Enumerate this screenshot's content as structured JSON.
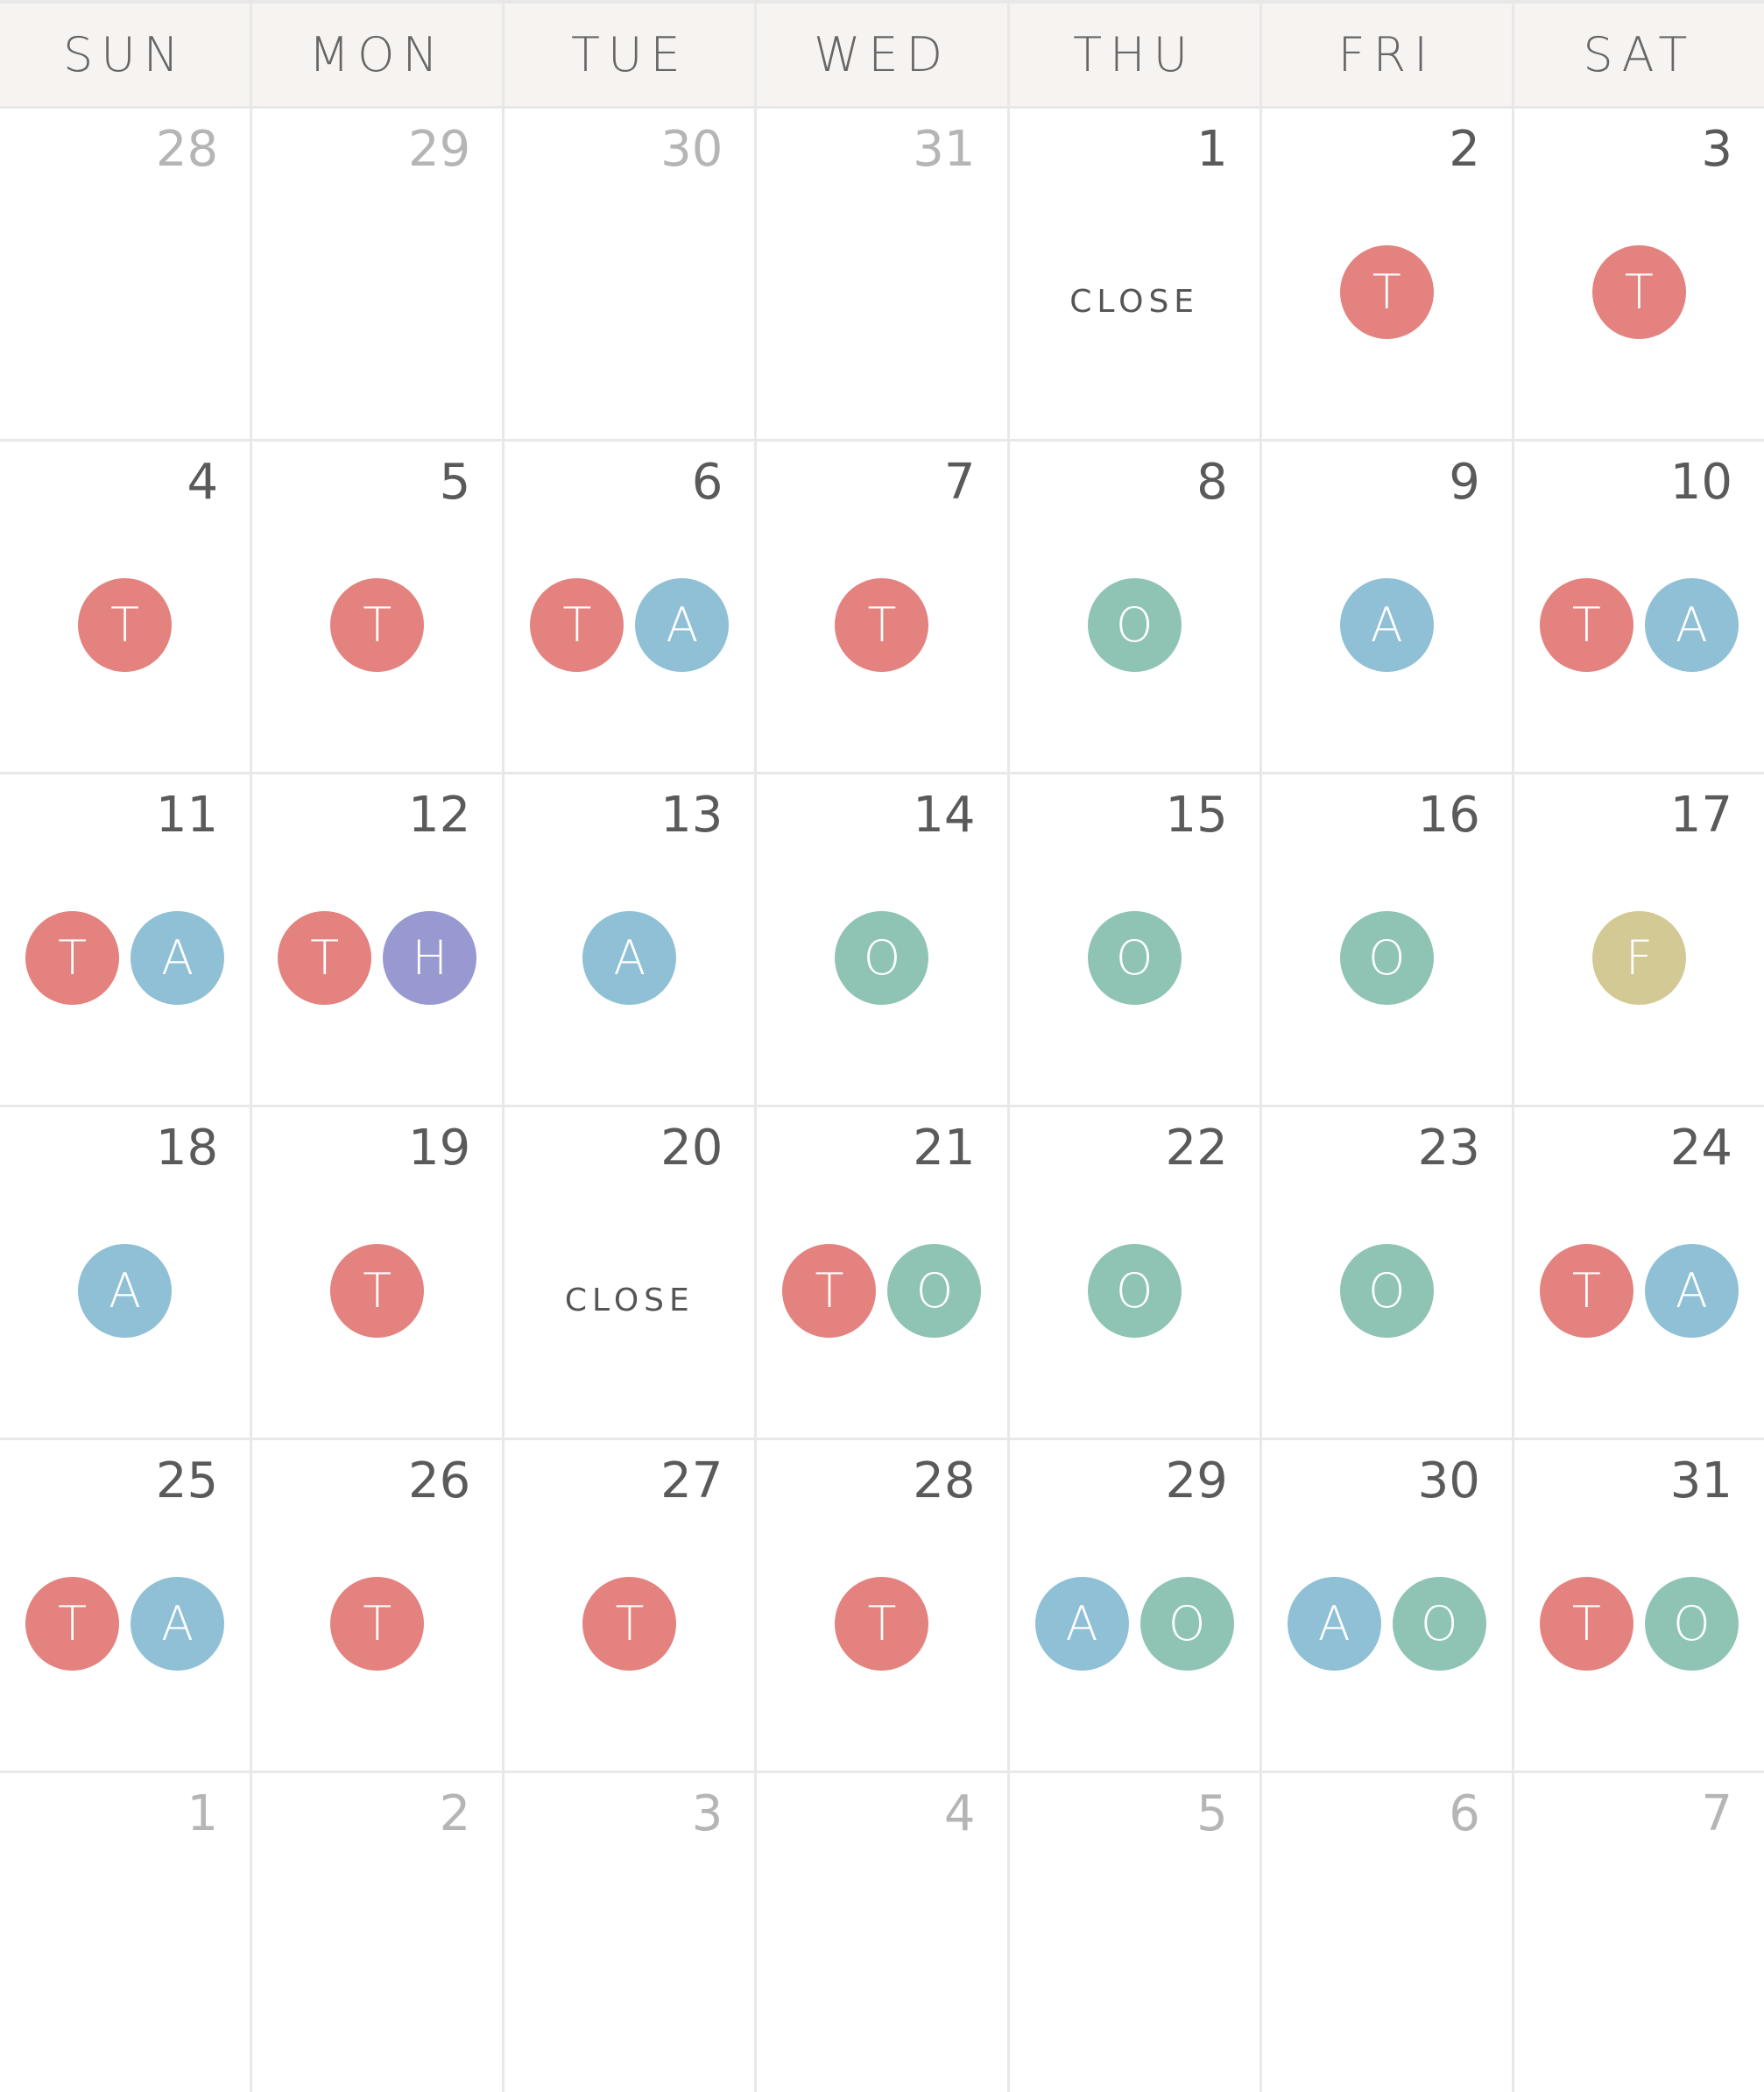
{
  "weekdays": [
    "SUN",
    "MON",
    "TUE",
    "WED",
    "THU",
    "FRI",
    "SAT"
  ],
  "close_label": "CLOSE",
  "colors": {
    "T": "#e3827e",
    "A": "#8fc0d5",
    "O": "#8fc4b5",
    "H": "#9999d1",
    "F": "#d3c994"
  },
  "weeks": [
    [
      {
        "d": "28",
        "m": true,
        "e": []
      },
      {
        "d": "29",
        "m": true,
        "e": []
      },
      {
        "d": "30",
        "m": true,
        "e": []
      },
      {
        "d": "31",
        "m": true,
        "e": []
      },
      {
        "d": "1",
        "e": [],
        "close": true
      },
      {
        "d": "2",
        "e": [
          "T"
        ]
      },
      {
        "d": "3",
        "e": [
          "T"
        ]
      }
    ],
    [
      {
        "d": "4",
        "e": [
          "T"
        ]
      },
      {
        "d": "5",
        "e": [
          "T"
        ]
      },
      {
        "d": "6",
        "e": [
          "T",
          "A"
        ]
      },
      {
        "d": "7",
        "e": [
          "T"
        ]
      },
      {
        "d": "8",
        "e": [
          "O"
        ]
      },
      {
        "d": "9",
        "e": [
          "A"
        ]
      },
      {
        "d": "10",
        "e": [
          "T",
          "A"
        ]
      }
    ],
    [
      {
        "d": "11",
        "e": [
          "T",
          "A"
        ]
      },
      {
        "d": "12",
        "e": [
          "T",
          "H"
        ]
      },
      {
        "d": "13",
        "e": [
          "A"
        ]
      },
      {
        "d": "14",
        "e": [
          "O"
        ]
      },
      {
        "d": "15",
        "e": [
          "O"
        ]
      },
      {
        "d": "16",
        "e": [
          "O"
        ]
      },
      {
        "d": "17",
        "e": [
          "F"
        ]
      }
    ],
    [
      {
        "d": "18",
        "e": [
          "A"
        ]
      },
      {
        "d": "19",
        "e": [
          "T"
        ]
      },
      {
        "d": "20",
        "e": [],
        "close": true
      },
      {
        "d": "21",
        "e": [
          "T",
          "O"
        ]
      },
      {
        "d": "22",
        "e": [
          "O"
        ]
      },
      {
        "d": "23",
        "e": [
          "O"
        ]
      },
      {
        "d": "24",
        "e": [
          "T",
          "A"
        ]
      }
    ],
    [
      {
        "d": "25",
        "e": [
          "T",
          "A"
        ]
      },
      {
        "d": "26",
        "e": [
          "T"
        ]
      },
      {
        "d": "27",
        "e": [
          "T"
        ]
      },
      {
        "d": "28",
        "e": [
          "T"
        ]
      },
      {
        "d": "29",
        "e": [
          "A",
          "O"
        ]
      },
      {
        "d": "30",
        "e": [
          "A",
          "O"
        ]
      },
      {
        "d": "31",
        "e": [
          "T",
          "O"
        ]
      }
    ],
    [
      {
        "d": "1",
        "m": true,
        "e": []
      },
      {
        "d": "2",
        "m": true,
        "e": []
      },
      {
        "d": "3",
        "m": true,
        "e": []
      },
      {
        "d": "4",
        "m": true,
        "e": []
      },
      {
        "d": "5",
        "m": true,
        "e": []
      },
      {
        "d": "6",
        "m": true,
        "e": []
      },
      {
        "d": "7",
        "m": true,
        "e": []
      }
    ]
  ]
}
